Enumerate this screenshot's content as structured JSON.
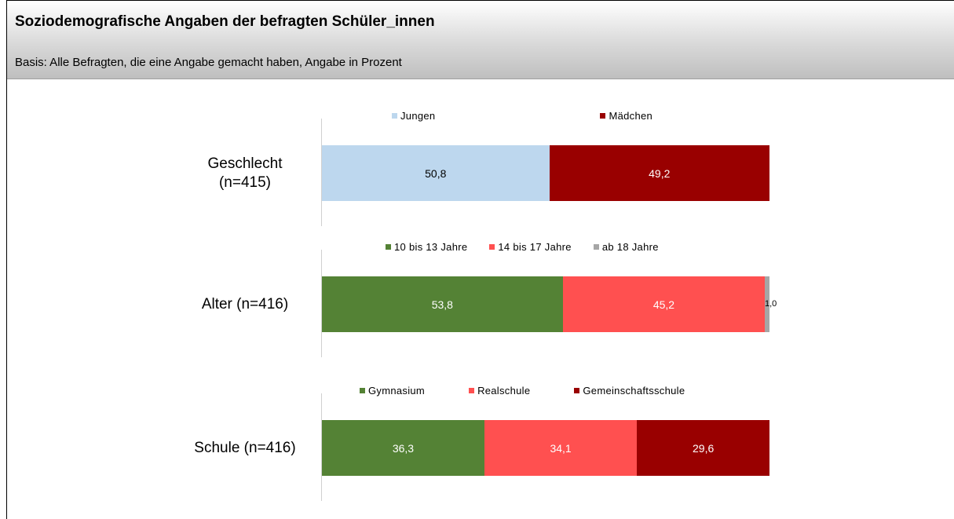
{
  "header": {
    "title": "Soziodemografische Angaben der befragten Schüler_innen",
    "subtitle": "Basis: Alle Befragten, die eine Angabe gemacht haben, Angabe in Prozent"
  },
  "chart_data": [
    {
      "type": "bar",
      "orientation": "horizontal",
      "stacked": true,
      "categories": [
        "Geschlecht (n=415)"
      ],
      "xlim": [
        0,
        100
      ],
      "series": [
        {
          "name": "Jungen",
          "color": "#bdd7ee",
          "values": [
            50.8
          ],
          "value_labels": [
            "50,8"
          ]
        },
        {
          "name": "Mädchen",
          "color": "#990000",
          "values": [
            49.2
          ],
          "value_labels": [
            "49,2"
          ]
        }
      ]
    },
    {
      "type": "bar",
      "orientation": "horizontal",
      "stacked": true,
      "categories": [
        "Alter (n=416)"
      ],
      "xlim": [
        0,
        100
      ],
      "series": [
        {
          "name": "10 bis 13 Jahre",
          "color": "#548235",
          "values": [
            53.8
          ],
          "value_labels": [
            "53,8"
          ]
        },
        {
          "name": "14 bis 17 Jahre",
          "color": "#ff5050",
          "values": [
            45.2
          ],
          "value_labels": [
            "45,2"
          ]
        },
        {
          "name": "ab 18 Jahre",
          "color": "#a6a6a6",
          "values": [
            1.0
          ],
          "value_labels": [
            "1,0"
          ]
        }
      ]
    },
    {
      "type": "bar",
      "orientation": "horizontal",
      "stacked": true,
      "categories": [
        "Schule (n=416)"
      ],
      "xlim": [
        0,
        100
      ],
      "series": [
        {
          "name": "Gymnasium",
          "color": "#548235",
          "values": [
            36.3
          ],
          "value_labels": [
            "36,3"
          ]
        },
        {
          "name": "Realschule",
          "color": "#ff5050",
          "values": [
            34.1
          ],
          "value_labels": [
            "34,1"
          ]
        },
        {
          "name": "Gemeinschaftsschule",
          "color": "#990000",
          "values": [
            29.6
          ],
          "value_labels": [
            "29,6"
          ]
        }
      ]
    }
  ]
}
